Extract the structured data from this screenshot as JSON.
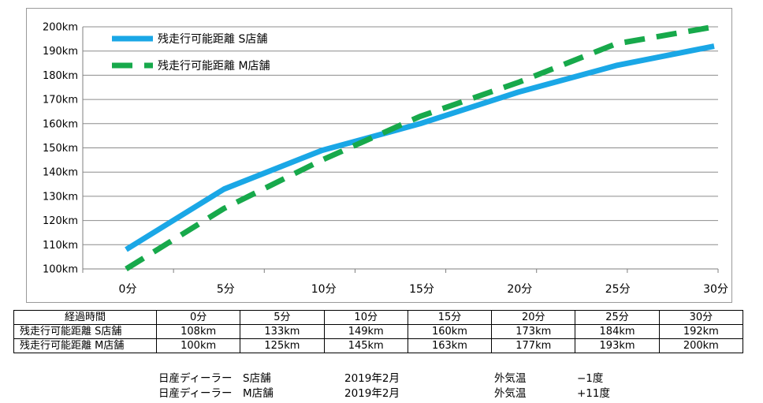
{
  "chart_data": {
    "type": "line",
    "categories": [
      "0分",
      "5分",
      "10分",
      "15分",
      "20分",
      "25分",
      "30分"
    ],
    "series": [
      {
        "name": "残走行可能距離 S店舗",
        "values": [
          108,
          133,
          149,
          160,
          173,
          184,
          192
        ],
        "color": "#1aa7e6",
        "style": "solid"
      },
      {
        "name": "残走行可能距離 M店舗",
        "values": [
          100,
          125,
          145,
          163,
          177,
          193,
          200
        ],
        "color": "#17a94b",
        "style": "dashed"
      }
    ],
    "yticks": [
      "100km",
      "110km",
      "120km",
      "130km",
      "140km",
      "150km",
      "160km",
      "170km",
      "180km",
      "190km",
      "200km"
    ],
    "ylim": [
      100,
      200
    ],
    "grid": true,
    "legend": "top-left"
  },
  "table": {
    "header": "経過時間",
    "columns": [
      "0分",
      "5分",
      "10分",
      "15分",
      "20分",
      "25分",
      "30分"
    ],
    "rows": [
      {
        "label": "残走行可能距離 S店舗",
        "cells": [
          "108km",
          "133km",
          "149km",
          "160km",
          "173km",
          "184km",
          "192km"
        ]
      },
      {
        "label": "残走行可能距離 M店舗",
        "cells": [
          "100km",
          "125km",
          "145km",
          "163km",
          "177km",
          "193km",
          "200km"
        ]
      }
    ]
  },
  "notes": [
    {
      "store": "日産ディーラー　S店舗",
      "date": "2019年2月",
      "temp_label": "外気温",
      "temp": "−1度"
    },
    {
      "store": "日産ディーラー　M店舗",
      "date": "2019年2月",
      "temp_label": "外気温",
      "temp": "+11度"
    }
  ]
}
